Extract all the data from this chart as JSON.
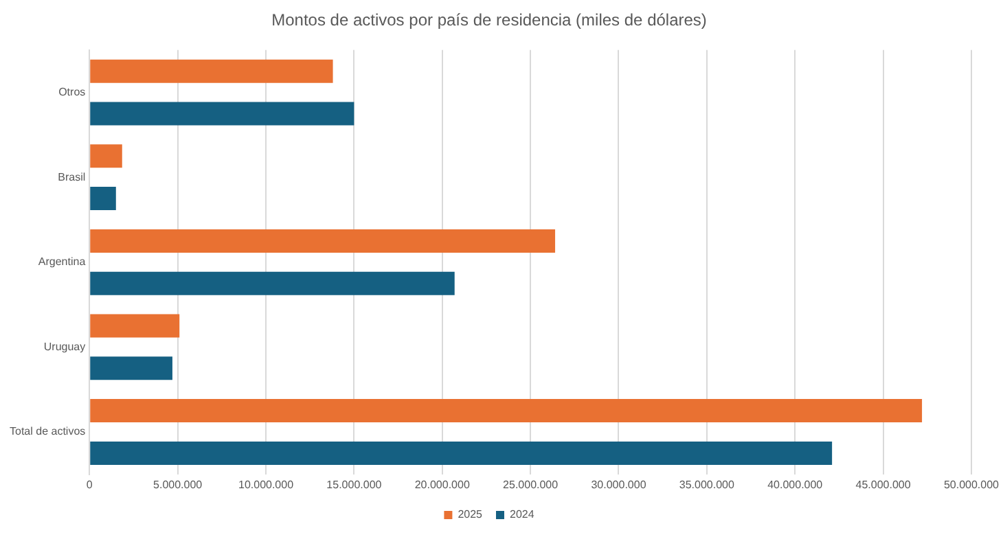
{
  "chart_data": {
    "type": "bar",
    "orientation": "horizontal",
    "title": "Montos de activos por país de residencia (miles de dólares)",
    "categories": [
      "Otros",
      "Brasil",
      "Argentina",
      "Uruguay",
      "Total de activos"
    ],
    "series": [
      {
        "name": "2025",
        "color": "#e97132",
        "values": [
          13800000,
          1850000,
          26400000,
          5100000,
          47200000
        ]
      },
      {
        "name": "2024",
        "color": "#156082",
        "values": [
          15000000,
          1500000,
          20700000,
          4700000,
          42100000
        ]
      }
    ],
    "xlim": [
      0,
      50000000
    ],
    "xticks": [
      {
        "value": 0,
        "label": "0"
      },
      {
        "value": 5000000,
        "label": "5.000.000"
      },
      {
        "value": 10000000,
        "label": "10.000.000"
      },
      {
        "value": 15000000,
        "label": "15.000.000"
      },
      {
        "value": 20000000,
        "label": "20.000.000"
      },
      {
        "value": 25000000,
        "label": "25.000.000"
      },
      {
        "value": 30000000,
        "label": "30.000.000"
      },
      {
        "value": 35000000,
        "label": "35.000.000"
      },
      {
        "value": 40000000,
        "label": "40.000.000"
      },
      {
        "value": 45000000,
        "label": "45.000.000"
      },
      {
        "value": 50000000,
        "label": "50.000.000"
      }
    ],
    "grid": "x",
    "legend": "bottom"
  }
}
